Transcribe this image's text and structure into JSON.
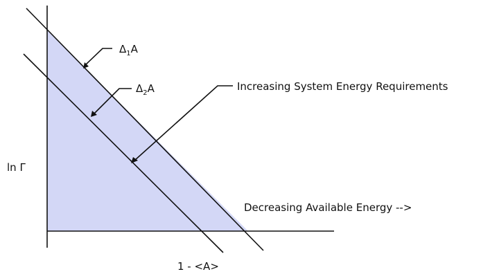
{
  "labels": {
    "delta1_prefix": "Δ",
    "delta1_sub": "1",
    "delta1_suffix": "A",
    "delta2_prefix": "Δ",
    "delta2_sub": "2",
    "delta2_suffix": "A",
    "increasing": "Increasing System Energy Requirements",
    "decreasing": "Decreasing Available Energy -->",
    "y_axis": "ln Γ",
    "x_axis": "1 - <A>"
  },
  "colors": {
    "region_fill": "#d3d7f6",
    "line": "#111111"
  }
}
